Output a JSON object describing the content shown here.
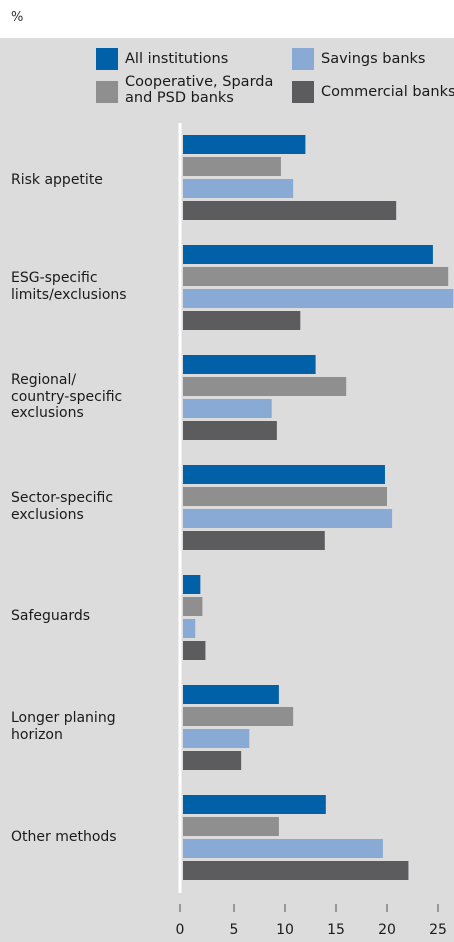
{
  "unit": "%",
  "chart_data": {
    "type": "bar",
    "orientation": "horizontal",
    "categories": [
      "Risk appetite",
      "ESG-specific\nlimits/exclusions",
      "Regional/\ncountry-specific\nexclusions",
      "Sector-specific\nexclusions",
      "Safeguards",
      "Longer planing\nhorizon",
      "Other methods"
    ],
    "series": [
      {
        "name": "All institutions",
        "color": "#0061a8",
        "values": [
          12,
          24.5,
          13,
          19.8,
          1.7,
          9.4,
          14
        ]
      },
      {
        "name": "Cooperative, Sparda\nand PSD banks",
        "color": "#8f8f8f",
        "values": [
          9.6,
          26,
          16,
          20,
          1.9,
          10.8,
          9.4
        ]
      },
      {
        "name": "Savings banks",
        "color": "#8aaad6",
        "values": [
          10.8,
          26.5,
          8.7,
          20.5,
          1.2,
          6.5,
          19.6
        ]
      },
      {
        "name": "Commercial banks",
        "color": "#5c5c5e",
        "values": [
          20.9,
          11.5,
          9.2,
          13.9,
          2.2,
          5.7,
          22.1
        ]
      }
    ],
    "xticks": [
      "0",
      "5",
      "10",
      "15",
      "20",
      "25"
    ],
    "xlim": [
      0,
      26.5
    ],
    "grid": false,
    "legend_placement": "top"
  }
}
